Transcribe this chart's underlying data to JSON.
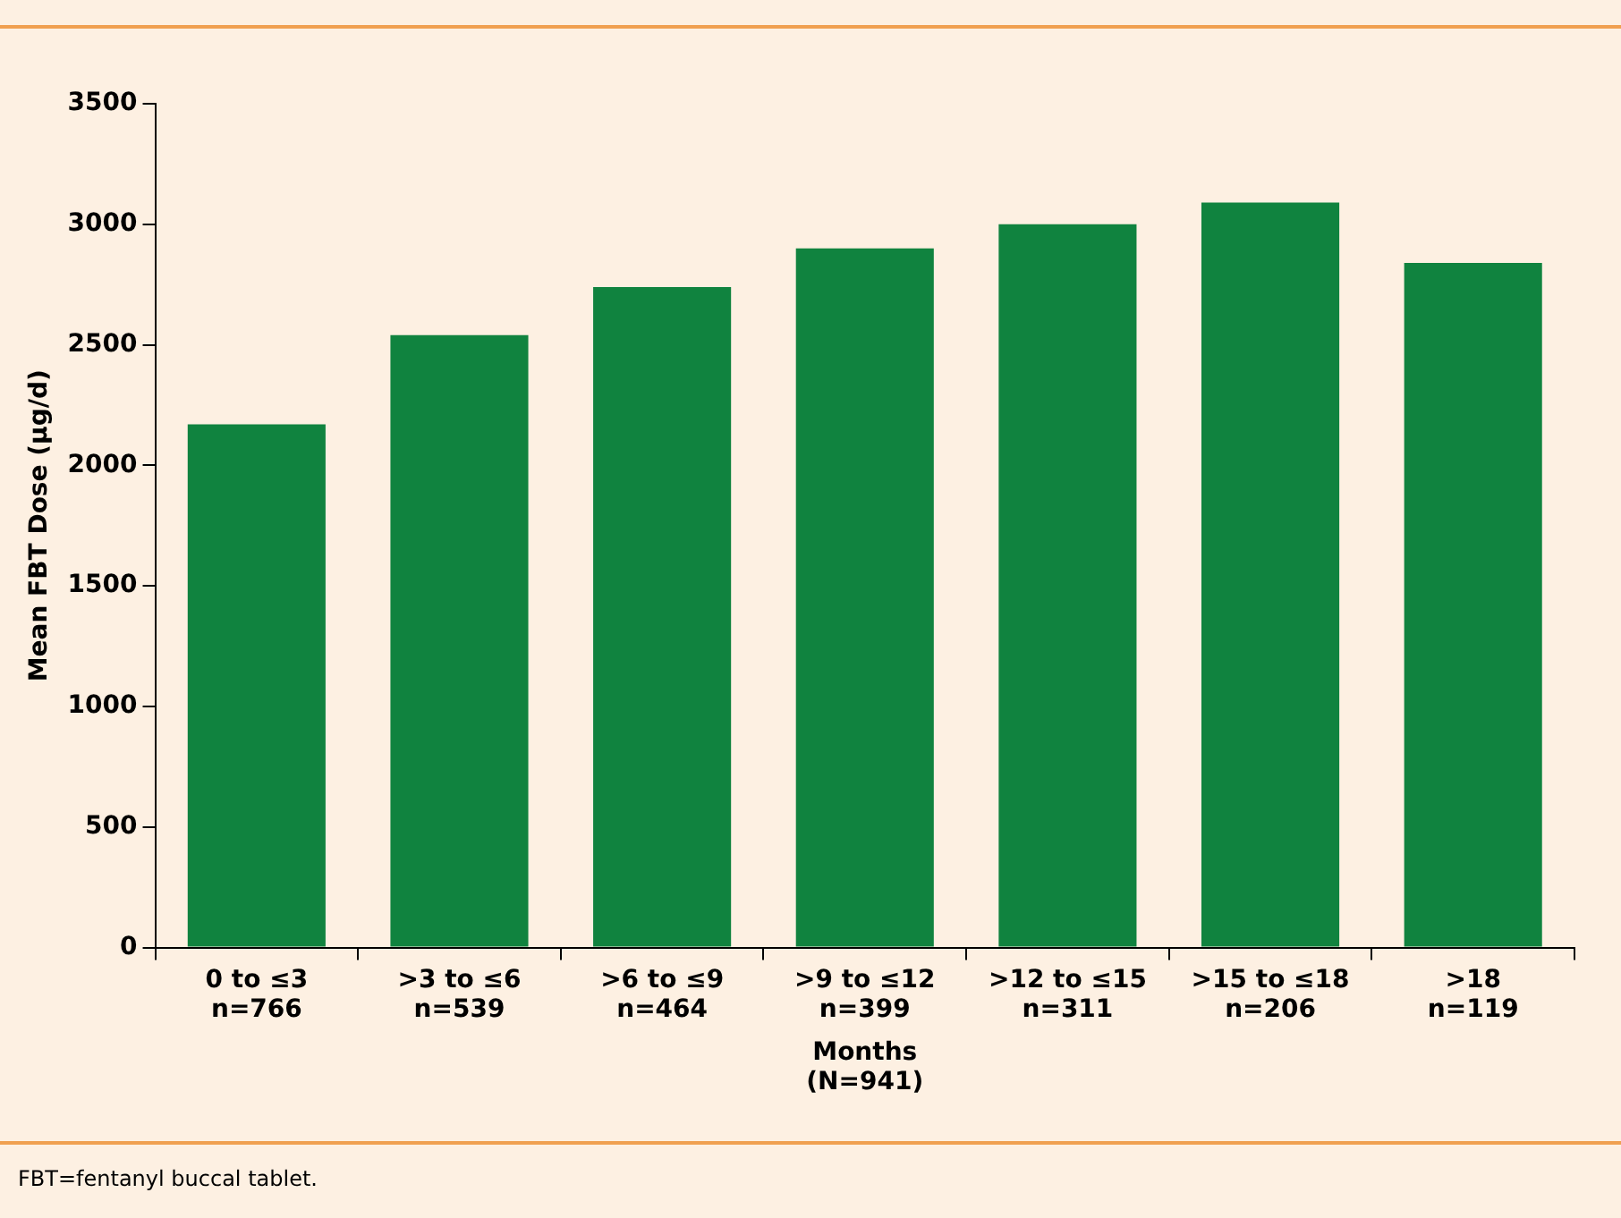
{
  "chart_data": {
    "type": "bar",
    "categories": [
      "0 to ≤3\nn=766",
      ">3 to ≤6\nn=539",
      ">6 to ≤9\nn=464",
      ">9 to ≤12\nn=399",
      ">12 to ≤15\nn=311",
      ">15 to ≤18\nn=206",
      ">18\nn=119"
    ],
    "values": [
      2170,
      2540,
      2740,
      2900,
      3000,
      3090,
      2840
    ],
    "color": "#10833f",
    "ylabel": "Mean FBT Dose (µg/d)",
    "xlabel": "Months\n(N=941)",
    "ylim": [
      0,
      3500
    ],
    "yticks": [
      0,
      500,
      1000,
      1500,
      2000,
      2500,
      3000,
      3500
    ],
    "grid": false,
    "legend": false,
    "annotations": [
      "FBT=fentanyl buccal tablet."
    ]
  }
}
